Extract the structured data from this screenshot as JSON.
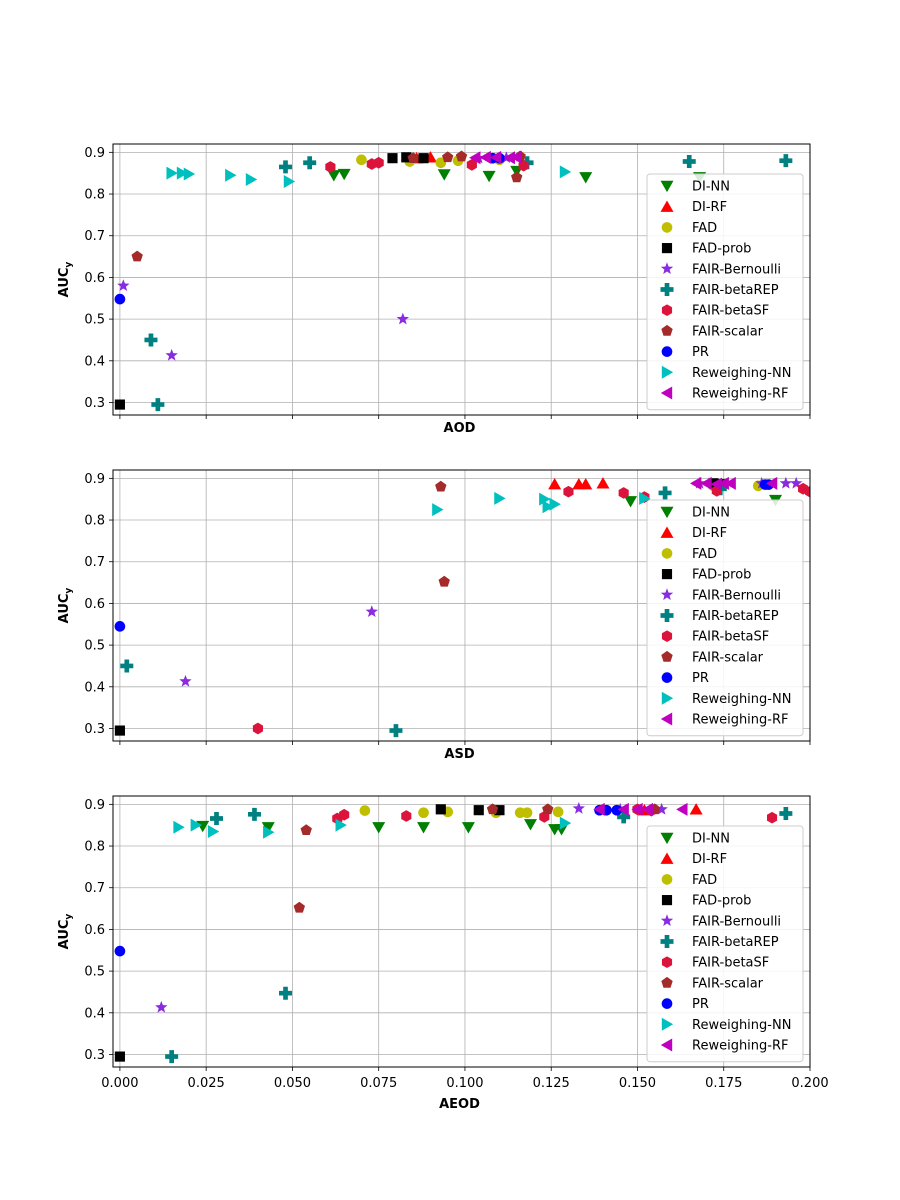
{
  "chart_data": {
    "type": "scatter",
    "xlim": [
      -0.002,
      0.2
    ],
    "ylim": [
      0.27,
      0.92
    ],
    "yticks": [
      0.3,
      0.4,
      0.5,
      0.6,
      0.7,
      0.8,
      0.9
    ],
    "xticks": [
      0.0,
      0.025,
      0.05,
      0.075,
      0.1,
      0.125,
      0.15,
      0.175,
      0.2
    ],
    "xtick_labels": [
      "0.000",
      "0.025",
      "0.050",
      "0.075",
      "0.100",
      "0.125",
      "0.150",
      "0.175",
      "0.200"
    ],
    "ytick_labels": [
      "0.3",
      "0.4",
      "0.5",
      "0.6",
      "0.7",
      "0.8",
      "0.9"
    ],
    "grid": true,
    "legend_position": "right",
    "legend_order": [
      "DI-NN",
      "DI-RF",
      "FAD",
      "FAD-prob",
      "FAIR-Bernoulli",
      "FAIR-betaREP",
      "FAIR-betaSF",
      "FAIR-scalar",
      "PR",
      "Reweighing-NN",
      "Reweighing-RF"
    ],
    "series_styles": {
      "DI-NN": {
        "marker": "triangle-down",
        "color": "#007f00"
      },
      "DI-RF": {
        "marker": "triangle-up",
        "color": "#ff0000"
      },
      "FAD": {
        "marker": "circle",
        "color": "#bfbf00"
      },
      "FAD-prob": {
        "marker": "square",
        "color": "#000000"
      },
      "FAIR-Bernoulli": {
        "marker": "star",
        "color": "#8a2be2"
      },
      "FAIR-betaREP": {
        "marker": "plus",
        "color": "#008080"
      },
      "FAIR-betaSF": {
        "marker": "hexagon",
        "color": "#dc143c"
      },
      "FAIR-scalar": {
        "marker": "pentagon",
        "color": "#a52a2a"
      },
      "PR": {
        "marker": "circle",
        "color": "#0000ff"
      },
      "Reweighing-NN": {
        "marker": "triangle-right",
        "color": "#00bfbf"
      },
      "Reweighing-RF": {
        "marker": "triangle-left",
        "color": "#bf00bf"
      }
    },
    "panels": [
      {
        "xlabel": "AOD",
        "ylabel": "AUC",
        "ylabel_subscript": "y",
        "show_xtick_labels": false,
        "series": [
          {
            "name": "DI-NN",
            "points": [
              [
                0.062,
                0.845
              ],
              [
                0.065,
                0.848
              ],
              [
                0.094,
                0.847
              ],
              [
                0.107,
                0.843
              ],
              [
                0.115,
                0.855
              ],
              [
                0.135,
                0.84
              ],
              [
                0.168,
                0.84
              ]
            ]
          },
          {
            "name": "DI-RF",
            "points": [
              [
                0.086,
                0.886
              ],
              [
                0.09,
                0.888
              ]
            ]
          },
          {
            "name": "FAD",
            "points": [
              [
                0.07,
                0.882
              ],
              [
                0.084,
                0.878
              ],
              [
                0.093,
                0.875
              ],
              [
                0.098,
                0.88
              ],
              [
                0.11,
                0.882
              ]
            ]
          },
          {
            "name": "FAD-prob",
            "points": [
              [
                0.0,
                0.295
              ],
              [
                0.079,
                0.886
              ],
              [
                0.083,
                0.888
              ],
              [
                0.088,
                0.886
              ]
            ]
          },
          {
            "name": "FAIR-Bernoulli",
            "points": [
              [
                0.001,
                0.58
              ],
              [
                0.015,
                0.413
              ],
              [
                0.082,
                0.5
              ],
              [
                0.104,
                0.886
              ],
              [
                0.112,
                0.887
              ]
            ]
          },
          {
            "name": "FAIR-betaREP",
            "points": [
              [
                0.009,
                0.45
              ],
              [
                0.011,
                0.295
              ],
              [
                0.048,
                0.865
              ],
              [
                0.055,
                0.875
              ],
              [
                0.118,
                0.875
              ],
              [
                0.165,
                0.878
              ],
              [
                0.193,
                0.88
              ]
            ]
          },
          {
            "name": "FAIR-betaSF",
            "points": [
              [
                0.061,
                0.865
              ],
              [
                0.073,
                0.872
              ],
              [
                0.075,
                0.875
              ],
              [
                0.102,
                0.87
              ],
              [
                0.117,
                0.868
              ]
            ]
          },
          {
            "name": "FAIR-scalar",
            "points": [
              [
                0.005,
                0.65
              ],
              [
                0.085,
                0.886
              ],
              [
                0.095,
                0.888
              ],
              [
                0.099,
                0.89
              ],
              [
                0.115,
                0.84
              ],
              [
                0.116,
                0.89
              ]
            ]
          },
          {
            "name": "PR",
            "points": [
              [
                0.0,
                0.548
              ],
              [
                0.108,
                0.886
              ],
              [
                0.11,
                0.886
              ]
            ]
          },
          {
            "name": "Reweighing-NN",
            "points": [
              [
                0.015,
                0.85
              ],
              [
                0.018,
                0.85
              ],
              [
                0.02,
                0.848
              ],
              [
                0.032,
                0.845
              ],
              [
                0.038,
                0.835
              ],
              [
                0.049,
                0.83
              ],
              [
                0.129,
                0.853
              ]
            ]
          },
          {
            "name": "Reweighing-RF",
            "points": [
              [
                0.103,
                0.887
              ],
              [
                0.106,
                0.888
              ],
              [
                0.109,
                0.888
              ],
              [
                0.113,
                0.887
              ],
              [
                0.115,
                0.888
              ]
            ]
          }
        ]
      },
      {
        "xlabel": "ASD",
        "ylabel": "AUC",
        "ylabel_subscript": "y",
        "show_xtick_labels": false,
        "series": [
          {
            "name": "DI-NN",
            "points": [
              [
                0.148,
                0.845
              ],
              [
                0.19,
                0.848
              ]
            ]
          },
          {
            "name": "DI-RF",
            "points": [
              [
                0.126,
                0.886
              ],
              [
                0.133,
                0.886
              ],
              [
                0.135,
                0.886
              ],
              [
                0.14,
                0.888
              ]
            ]
          },
          {
            "name": "FAD",
            "points": [
              [
                0.172,
                0.882
              ],
              [
                0.185,
                0.882
              ]
            ]
          },
          {
            "name": "FAD-prob",
            "points": [
              [
                0.0,
                0.295
              ],
              [
                0.172,
                0.888
              ],
              [
                0.174,
                0.886
              ]
            ]
          },
          {
            "name": "FAIR-Bernoulli",
            "points": [
              [
                0.073,
                0.58
              ],
              [
                0.019,
                0.413
              ],
              [
                0.168,
                0.888
              ],
              [
                0.186,
                0.888
              ],
              [
                0.193,
                0.888
              ],
              [
                0.196,
                0.888
              ]
            ]
          },
          {
            "name": "FAIR-betaREP",
            "points": [
              [
                0.002,
                0.45
              ],
              [
                0.08,
                0.295
              ],
              [
                0.158,
                0.865
              ],
              [
                0.174,
                0.875
              ]
            ]
          },
          {
            "name": "FAIR-betaSF",
            "points": [
              [
                0.04,
                0.3
              ],
              [
                0.13,
                0.868
              ],
              [
                0.146,
                0.865
              ],
              [
                0.152,
                0.855
              ],
              [
                0.173,
                0.87
              ],
              [
                0.198,
                0.875
              ],
              [
                0.2,
                0.868
              ]
            ]
          },
          {
            "name": "FAIR-scalar",
            "points": [
              [
                0.093,
                0.88
              ],
              [
                0.094,
                0.652
              ]
            ]
          },
          {
            "name": "PR",
            "points": [
              [
                0.0,
                0.545
              ],
              [
                0.187,
                0.885
              ],
              [
                0.188,
                0.885
              ]
            ]
          },
          {
            "name": "Reweighing-NN",
            "points": [
              [
                0.092,
                0.825
              ],
              [
                0.11,
                0.852
              ],
              [
                0.123,
                0.85
              ],
              [
                0.124,
                0.832
              ],
              [
                0.126,
                0.838
              ],
              [
                0.152,
                0.852
              ]
            ]
          },
          {
            "name": "Reweighing-RF",
            "points": [
              [
                0.167,
                0.888
              ],
              [
                0.17,
                0.888
              ],
              [
                0.173,
                0.886
              ],
              [
                0.175,
                0.888
              ],
              [
                0.177,
                0.888
              ],
              [
                0.189,
                0.888
              ]
            ]
          }
        ]
      },
      {
        "xlabel": "AEOD",
        "ylabel": "AUC",
        "ylabel_subscript": "y",
        "show_xtick_labels": true,
        "series": [
          {
            "name": "DI-NN",
            "points": [
              [
                0.024,
                0.848
              ],
              [
                0.043,
                0.845
              ],
              [
                0.075,
                0.845
              ],
              [
                0.088,
                0.845
              ],
              [
                0.101,
                0.845
              ],
              [
                0.119,
                0.852
              ],
              [
                0.126,
                0.84
              ],
              [
                0.128,
                0.84
              ]
            ]
          },
          {
            "name": "DI-RF",
            "points": [
              [
                0.152,
                0.886
              ],
              [
                0.167,
                0.888
              ]
            ]
          },
          {
            "name": "FAD",
            "points": [
              [
                0.071,
                0.885
              ],
              [
                0.088,
                0.88
              ],
              [
                0.095,
                0.882
              ],
              [
                0.109,
                0.88
              ],
              [
                0.116,
                0.88
              ],
              [
                0.118,
                0.88
              ],
              [
                0.127,
                0.882
              ]
            ]
          },
          {
            "name": "FAD-prob",
            "points": [
              [
                0.0,
                0.295
              ],
              [
                0.093,
                0.888
              ],
              [
                0.104,
                0.886
              ],
              [
                0.11,
                0.886
              ]
            ]
          },
          {
            "name": "FAIR-Bernoulli",
            "points": [
              [
                0.012,
                0.413
              ],
              [
                0.133,
                0.89
              ],
              [
                0.145,
                0.888
              ],
              [
                0.157,
                0.888
              ]
            ]
          },
          {
            "name": "FAIR-betaREP",
            "points": [
              [
                0.015,
                0.295
              ],
              [
                0.028,
                0.866
              ],
              [
                0.039,
                0.876
              ],
              [
                0.048,
                0.447
              ],
              [
                0.146,
                0.87
              ],
              [
                0.193,
                0.878
              ]
            ]
          },
          {
            "name": "FAIR-betaSF",
            "points": [
              [
                0.063,
                0.866
              ],
              [
                0.065,
                0.875
              ],
              [
                0.083,
                0.872
              ],
              [
                0.123,
                0.87
              ],
              [
                0.15,
                0.888
              ],
              [
                0.154,
                0.885
              ],
              [
                0.189,
                0.868
              ]
            ]
          },
          {
            "name": "FAIR-scalar",
            "points": [
              [
                0.052,
                0.652
              ],
              [
                0.054,
                0.838
              ],
              [
                0.108,
                0.888
              ],
              [
                0.124,
                0.888
              ],
              [
                0.155,
                0.888
              ]
            ]
          },
          {
            "name": "PR",
            "points": [
              [
                0.0,
                0.548
              ],
              [
                0.139,
                0.886
              ],
              [
                0.141,
                0.886
              ],
              [
                0.144,
                0.886
              ]
            ]
          },
          {
            "name": "Reweighing-NN",
            "points": [
              [
                0.017,
                0.845
              ],
              [
                0.022,
                0.85
              ],
              [
                0.027,
                0.835
              ],
              [
                0.043,
                0.833
              ],
              [
                0.064,
                0.85
              ],
              [
                0.129,
                0.855
              ]
            ]
          },
          {
            "name": "Reweighing-RF",
            "points": [
              [
                0.139,
                0.888
              ],
              [
                0.146,
                0.888
              ],
              [
                0.15,
                0.888
              ],
              [
                0.153,
                0.888
              ],
              [
                0.163,
                0.888
              ]
            ]
          }
        ]
      }
    ]
  }
}
